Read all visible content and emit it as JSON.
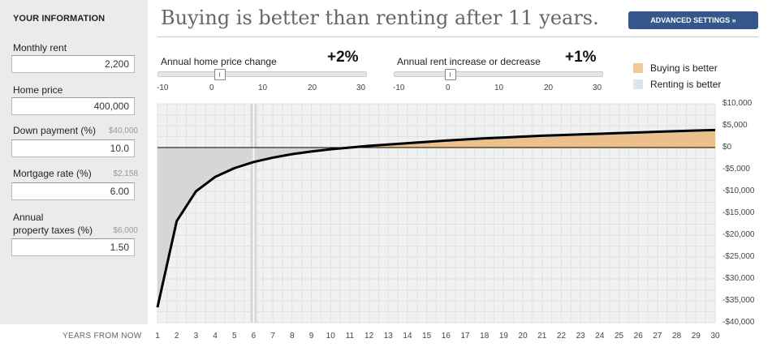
{
  "sidebar": {
    "title": "YOUR INFORMATION",
    "fields": [
      {
        "label": "Monthly rent",
        "hint": "",
        "value": "2,200"
      },
      {
        "label": "Home price",
        "hint": "",
        "value": "400,000"
      },
      {
        "label": "Down payment (%)",
        "hint": "$40,000",
        "value": "10.0"
      },
      {
        "label": "Mortgage rate (%)",
        "hint": "$2,158",
        "value": "6.00"
      },
      {
        "label_line1": "Annual",
        "label_line2": "property taxes (%)",
        "hint": "$6,000",
        "value": "1.50"
      }
    ]
  },
  "headline": "Buying is better than renting after 11 years.",
  "advanced_button": "ADVANCED SETTINGS »",
  "sliders": [
    {
      "label": "Annual home price change",
      "value_text": "+2%",
      "value": 2,
      "min": -10,
      "max": 30,
      "ticks": [
        "-10",
        "0",
        "10",
        "20",
        "30"
      ]
    },
    {
      "label": "Annual rent increase or decrease",
      "value_text": "+1%",
      "value": 1,
      "min": -10,
      "max": 30,
      "ticks": [
        "-10",
        "0",
        "10",
        "20",
        "30"
      ]
    }
  ],
  "legend": [
    {
      "label": "Buying is better",
      "color": "#f0c99a"
    },
    {
      "label": "Renting is better",
      "color": "#dce5ec"
    }
  ],
  "colors": {
    "buying_fill": "#ebc08c",
    "renting_fill": "#d5d6d7",
    "plot_bg": "#f0f2f1",
    "line": "#000000"
  },
  "chart_data": {
    "type": "area",
    "xlabel": "YEARS FROM NOW",
    "x": [
      1,
      2,
      3,
      4,
      5,
      6,
      7,
      8,
      9,
      10,
      11,
      12,
      13,
      14,
      15,
      16,
      17,
      18,
      19,
      20,
      21,
      22,
      23,
      24,
      25,
      26,
      27,
      28,
      29,
      30
    ],
    "values": [
      -36500,
      -16800,
      -10000,
      -6700,
      -4700,
      -3300,
      -2300,
      -1500,
      -900,
      -400,
      0,
      400,
      700,
      1000,
      1300,
      1600,
      1850,
      2100,
      2300,
      2500,
      2700,
      2850,
      3000,
      3150,
      3300,
      3450,
      3600,
      3750,
      3900,
      4000
    ],
    "ylim": [
      -40000,
      10000
    ],
    "ytick_labels": [
      "$10,000",
      "$5,000",
      "$0",
      "-$5,000",
      "-$10,000",
      "-$15,000",
      "-$20,000",
      "-$25,000",
      "-$30,000",
      "-$35,000",
      "-$40,000"
    ],
    "yticks": [
      10000,
      5000,
      0,
      -5000,
      -10000,
      -15000,
      -20000,
      -25000,
      -30000,
      -35000,
      -40000
    ],
    "xtick_labels": [
      "1",
      "2",
      "3",
      "4",
      "5",
      "6",
      "7",
      "8",
      "9",
      "10",
      "11",
      "12",
      "13",
      "14",
      "15",
      "16",
      "17",
      "18",
      "19",
      "20",
      "21",
      "22",
      "23",
      "24",
      "25",
      "26",
      "27",
      "28",
      "29",
      "30"
    ],
    "marker_year": 6,
    "grid": true
  }
}
